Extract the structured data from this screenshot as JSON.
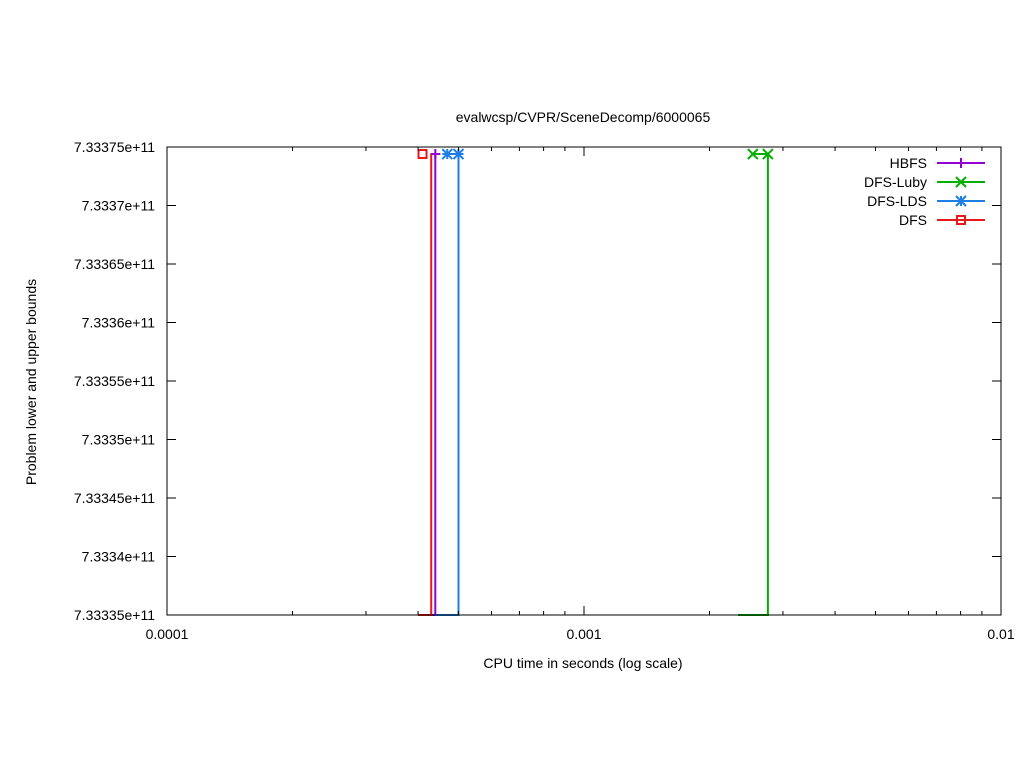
{
  "chart_data": {
    "type": "line",
    "title": "evalwcsp/CVPR/SceneDecomp/6000065",
    "xlabel": "CPU time in seconds (log scale)",
    "ylabel": "Problem lower and upper bounds",
    "x_scale": "log",
    "xlim": [
      0.0001,
      0.01
    ],
    "ylim": [
      733335000000,
      733375000000
    ],
    "x_ticks": [
      {
        "value": 0.0001,
        "label": "0.0001"
      },
      {
        "value": 0.001,
        "label": "0.001"
      },
      {
        "value": 0.01,
        "label": "0.01"
      }
    ],
    "y_ticks": [
      {
        "value": 733335000000,
        "label": "7.33335e+11"
      },
      {
        "value": 733340000000,
        "label": "7.3334e+11"
      },
      {
        "value": 733345000000,
        "label": "7.33345e+11"
      },
      {
        "value": 733350000000,
        "label": "7.3335e+11"
      },
      {
        "value": 733355000000,
        "label": "7.33355e+11"
      },
      {
        "value": 733360000000,
        "label": "7.3336e+11"
      },
      {
        "value": 733365000000,
        "label": "7.33365e+11"
      },
      {
        "value": 733370000000,
        "label": "7.3337e+11"
      },
      {
        "value": 733375000000,
        "label": "7.33375e+11"
      }
    ],
    "grid": false,
    "legend_position": "top-right",
    "series": [
      {
        "name": "HBFS",
        "color": "#9400d3",
        "marker": "plus",
        "lower_bound": [
          [
            0.00043,
            733335000000
          ],
          [
            0.00044,
            733335000000
          ],
          [
            0.00044,
            733374400000
          ]
        ],
        "upper_bound": [
          [
            0.00044,
            733374400000
          ]
        ]
      },
      {
        "name": "DFS-Luby",
        "color": "#00b000",
        "marker": "cross",
        "lower_bound": [
          [
            0.00234,
            733335000000
          ],
          [
            0.00276,
            733335000000
          ],
          [
            0.00276,
            733374400000
          ]
        ],
        "upper_bound": [
          [
            0.00254,
            733374400000
          ],
          [
            0.00276,
            733374400000
          ]
        ]
      },
      {
        "name": "DFS-LDS",
        "color": "#1e7fe6",
        "marker": "asterisk",
        "lower_bound": [
          [
            0.00044,
            733335000000
          ],
          [
            0.0005,
            733335000000
          ],
          [
            0.0005,
            733374400000
          ]
        ],
        "upper_bound": [
          [
            0.00047,
            733374400000
          ],
          [
            0.0005,
            733374400000
          ]
        ]
      },
      {
        "name": "DFS",
        "color": "#e8191b",
        "marker": "square",
        "lower_bound": [
          [
            0.0004,
            733335000000
          ],
          [
            0.00043,
            733335000000
          ],
          [
            0.00043,
            733374400000
          ]
        ],
        "upper_bound": [
          [
            0.00041,
            733374400000
          ]
        ]
      }
    ]
  }
}
